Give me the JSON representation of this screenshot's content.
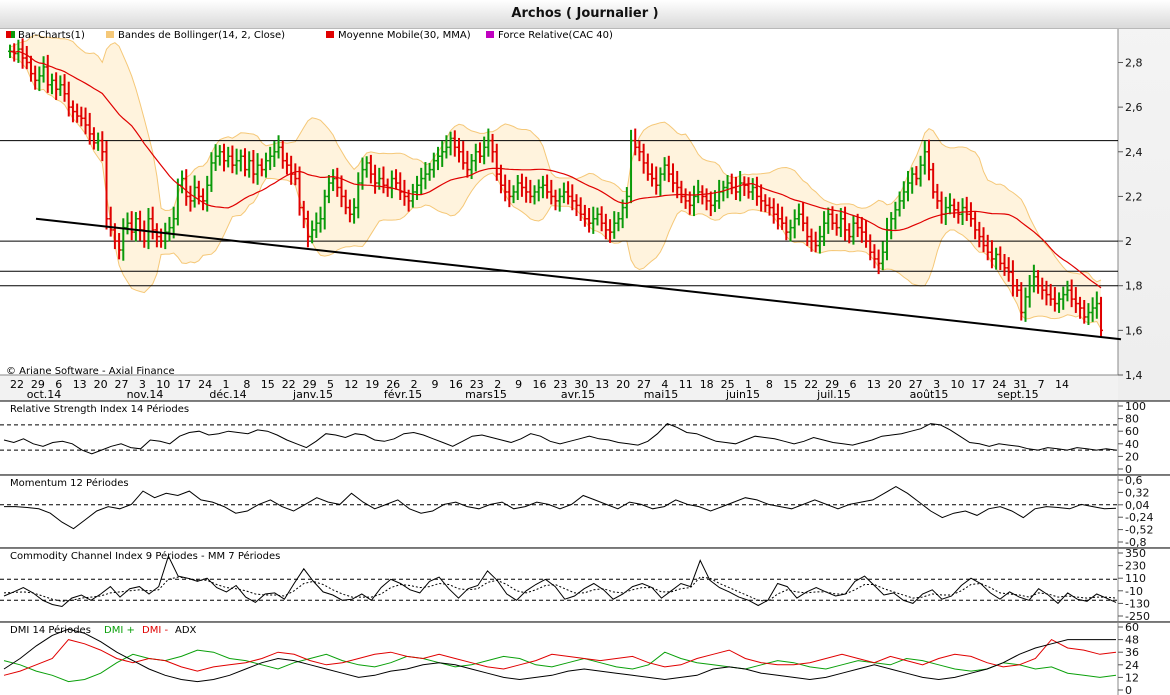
{
  "window": {
    "title": "Archos  ( Journalier )"
  },
  "colors": {
    "up": "#0a9a0a",
    "down": "#e00000",
    "ma": "#e00000",
    "bollinger": "#f5c878",
    "bollinger_fill": "#fff3dd",
    "rsi_line": "#000000",
    "dmi_plus": "#0aa00a",
    "dmi_minus": "#e00000",
    "adx": "#000000"
  },
  "copyright": "© Ariane Software - Axial Finance",
  "chart_data": [
    {
      "type": "bar",
      "panel": "price",
      "legend": [
        {
          "label": "Bar-Charts(1)",
          "color": "#e00000",
          "color2": "#0a9a0a"
        },
        {
          "label": "Bandes de Bollinger(14, 2, Close)",
          "color": "#f5c878"
        },
        {
          "label": "Moyenne Mobile(30, MMA)",
          "color": "#e00000"
        },
        {
          "label": "Force Relative(CAC 40)",
          "color": "#c000c0"
        }
      ],
      "ylim": [
        1.4,
        2.95
      ],
      "yticks": [
        "2,8",
        "2,6",
        "2,4",
        "2,2",
        "2",
        "1,8",
        "1,6",
        "1,4"
      ],
      "ytick_values": [
        2.8,
        2.6,
        2.4,
        2.2,
        2.0,
        1.8,
        1.6,
        1.4
      ],
      "day_labels": [
        "22",
        "29",
        "6",
        "13",
        "20",
        "27",
        "3",
        "10",
        "17",
        "24",
        "1",
        "8",
        "15",
        "22",
        "29",
        "5",
        "12",
        "19",
        "26",
        "2",
        "9",
        "16",
        "23",
        "2",
        "9",
        "16",
        "23",
        "30",
        "13",
        "20",
        "27",
        "4",
        "11",
        "18",
        "25",
        "1",
        "8",
        "15",
        "22",
        "29",
        "6",
        "13",
        "20",
        "27",
        "3",
        "10",
        "17",
        "24",
        "31",
        "7",
        "14"
      ],
      "month_labels": [
        "oct.14",
        "nov.14",
        "déc.14",
        "janv.15",
        "févr.15",
        "mars15",
        "avr.15",
        "mai15",
        "juin15",
        "juil.15",
        "août15",
        "sept.15"
      ],
      "horizontal_levels": [
        2.45,
        2.0,
        1.865,
        1.8
      ],
      "trendline": {
        "from": [
          0,
          2.1
        ],
        "to": [
          274,
          1.56
        ]
      },
      "closes": [
        2.85,
        2.84,
        2.86,
        2.82,
        2.8,
        2.75,
        2.72,
        2.74,
        2.78,
        2.7,
        2.72,
        2.68,
        2.7,
        2.66,
        2.6,
        2.58,
        2.56,
        2.55,
        2.52,
        2.48,
        2.44,
        2.45,
        2.4,
        2.1,
        2.05,
        2.0,
        1.96,
        2.06,
        2.08,
        2.04,
        2.1,
        2.05,
        2.0,
        2.1,
        2.05,
        2.02,
        2.0,
        2.04,
        2.06,
        2.1,
        2.25,
        2.28,
        2.2,
        2.18,
        2.24,
        2.2,
        2.18,
        2.25,
        2.35,
        2.38,
        2.4,
        2.36,
        2.38,
        2.34,
        2.36,
        2.38,
        2.32,
        2.36,
        2.3,
        2.34,
        2.32,
        2.36,
        2.38,
        2.4,
        2.42,
        2.36,
        2.34,
        2.3,
        2.28,
        2.15,
        2.1,
        2.02,
        2.05,
        2.08,
        2.1,
        2.2,
        2.26,
        2.28,
        2.24,
        2.2,
        2.15,
        2.12,
        2.15,
        2.26,
        2.32,
        2.35,
        2.3,
        2.26,
        2.28,
        2.25,
        2.24,
        2.28,
        2.26,
        2.22,
        2.2,
        2.18,
        2.22,
        2.25,
        2.28,
        2.3,
        2.32,
        2.36,
        2.38,
        2.4,
        2.42,
        2.46,
        2.42,
        2.4,
        2.35,
        2.32,
        2.36,
        2.4,
        2.38,
        2.42,
        2.45,
        2.4,
        2.3,
        2.25,
        2.22,
        2.2,
        2.22,
        2.26,
        2.24,
        2.22,
        2.2,
        2.22,
        2.24,
        2.25,
        2.22,
        2.2,
        2.18,
        2.2,
        2.22,
        2.2,
        2.18,
        2.16,
        2.12,
        2.1,
        2.08,
        2.1,
        2.12,
        2.08,
        2.05,
        2.04,
        2.08,
        2.1,
        2.15,
        2.2,
        2.45,
        2.42,
        2.4,
        2.35,
        2.3,
        2.28,
        2.25,
        2.3,
        2.34,
        2.3,
        2.26,
        2.24,
        2.2,
        2.18,
        2.16,
        2.2,
        2.22,
        2.2,
        2.18,
        2.16,
        2.18,
        2.22,
        2.24,
        2.26,
        2.24,
        2.22,
        2.26,
        2.25,
        2.22,
        2.24,
        2.2,
        2.18,
        2.16,
        2.15,
        2.12,
        2.1,
        2.08,
        2.04,
        2.06,
        2.1,
        2.12,
        2.08,
        2.02,
        2.0,
        1.98,
        2.02,
        2.08,
        2.12,
        2.08,
        2.06,
        2.1,
        2.05,
        2.02,
        2.08,
        2.06,
        2.04,
        2.0,
        1.95,
        1.92,
        1.9,
        1.95,
        2.05,
        2.1,
        2.14,
        2.18,
        2.22,
        2.26,
        2.3,
        2.28,
        2.34,
        2.4,
        2.32,
        2.22,
        2.18,
        2.12,
        2.15,
        2.16,
        2.14,
        2.12,
        2.15,
        2.12,
        2.1,
        2.05,
        2.02,
        1.98,
        1.95,
        1.92,
        1.94,
        1.9,
        1.88,
        1.86,
        1.8,
        1.78,
        1.68,
        1.75,
        1.8,
        1.84,
        1.8,
        1.78,
        1.76,
        1.74,
        1.72,
        1.74,
        1.76,
        1.78,
        1.74,
        1.72,
        1.7,
        1.66,
        1.68,
        1.7,
        1.72,
        1.6
      ]
    },
    {
      "type": "line",
      "panel": "rsi",
      "title": "Relative Strength Index 14 Périodes",
      "ylim": [
        0,
        100
      ],
      "yticks": [
        "100",
        "80",
        "60",
        "40",
        "20",
        "0"
      ],
      "ytick_values": [
        100,
        80,
        60,
        40,
        20,
        0
      ],
      "dashed_levels": [
        70,
        30
      ],
      "series": [
        {
          "values": [
            46,
            42,
            48,
            40,
            36,
            42,
            44,
            40,
            30,
            24,
            30,
            36,
            40,
            34,
            32,
            46,
            44,
            40,
            52,
            58,
            60,
            54,
            56,
            60,
            58,
            56,
            62,
            60,
            54,
            46,
            40,
            34,
            44,
            56,
            54,
            50,
            56,
            54,
            46,
            44,
            48,
            56,
            58,
            54,
            48,
            42,
            36,
            44,
            52,
            54,
            50,
            46,
            42,
            48,
            56,
            52,
            44,
            40,
            44,
            48,
            52,
            48,
            46,
            42,
            40,
            38,
            44,
            56,
            72,
            66,
            58,
            56,
            50,
            44,
            42,
            40,
            46,
            52,
            50,
            48,
            44,
            40,
            44,
            50,
            46,
            42,
            40,
            38,
            42,
            46,
            52,
            54,
            56,
            60,
            64,
            72,
            70,
            62,
            52,
            42,
            40,
            36,
            40,
            38,
            36,
            32,
            30,
            34,
            32,
            30,
            34,
            32,
            30,
            32,
            30
          ]
        }
      ]
    },
    {
      "type": "line",
      "panel": "momentum",
      "title": "Momentum 12 Périodes",
      "ylim": [
        -0.8,
        0.6
      ],
      "yticks": [
        "0,6",
        "0,32",
        "0,04",
        "-0,24",
        "-0,52",
        "-0,8"
      ],
      "ytick_values": [
        0.6,
        0.32,
        0.04,
        -0.24,
        -0.52,
        -0.8
      ],
      "dashed_levels": [
        0.04
      ],
      "series": [
        {
          "values": [
            0.0,
            0.0,
            -0.02,
            -0.05,
            -0.15,
            -0.35,
            -0.5,
            -0.3,
            -0.1,
            0.0,
            -0.05,
            0.05,
            0.35,
            0.2,
            0.3,
            0.25,
            0.35,
            0.15,
            0.1,
            0.0,
            -0.15,
            -0.1,
            0.05,
            0.15,
            0.0,
            -0.1,
            0.05,
            0.2,
            0.1,
            0.05,
            0.3,
            0.1,
            -0.05,
            0.05,
            0.15,
            -0.05,
            -0.15,
            -0.1,
            0.05,
            0.1,
            0.0,
            -0.05,
            0.05,
            0.1,
            -0.05,
            0.0,
            0.1,
            0.05,
            -0.05,
            0.05,
            0.25,
            0.15,
            0.05,
            -0.05,
            0.1,
            0.05,
            -0.05,
            0.0,
            0.15,
            0.05,
            0.0,
            -0.1,
            0.0,
            0.1,
            0.2,
            0.15,
            0.05,
            0.0,
            -0.05,
            0.05,
            0.15,
            0.05,
            -0.05,
            0.05,
            0.1,
            0.15,
            0.3,
            0.45,
            0.3,
            0.1,
            -0.1,
            -0.25,
            -0.15,
            -0.1,
            -0.2,
            -0.05,
            0.0,
            -0.1,
            -0.25,
            -0.05,
            0.0,
            -0.02,
            -0.05,
            0.05,
            0.0,
            -0.05,
            -0.04
          ]
        }
      ]
    },
    {
      "type": "line",
      "panel": "cci",
      "title": "Commodity Channel Index 9 Périodes - MM  7 Périodes",
      "ylim": [
        -250,
        350
      ],
      "yticks": [
        "350",
        "230",
        "110",
        "-10",
        "-130",
        "-250"
      ],
      "ytick_values": [
        350,
        230,
        110,
        -10,
        -130,
        -250
      ],
      "dashed_levels": [
        100,
        -100
      ],
      "series": [
        {
          "name": "CCI",
          "values": [
            -60,
            -20,
            20,
            -30,
            -100,
            -140,
            -160,
            -80,
            -50,
            -100,
            -40,
            30,
            -70,
            10,
            30,
            -40,
            30,
            320,
            130,
            110,
            80,
            110,
            20,
            -20,
            40,
            -70,
            -120,
            -40,
            -30,
            -90,
            60,
            200,
            80,
            -20,
            -50,
            -100,
            -90,
            -40,
            -100,
            20,
            100,
            60,
            0,
            -30,
            80,
            120,
            10,
            -80,
            10,
            40,
            180,
            90,
            -40,
            -100,
            -10,
            50,
            100,
            30,
            -90,
            -60,
            10,
            60,
            0,
            -90,
            -40,
            30,
            60,
            20,
            -80,
            -10,
            60,
            30,
            280,
            90,
            20,
            -20,
            -70,
            -100,
            -150,
            -100,
            60,
            30,
            -80,
            -20,
            20,
            -20,
            -60,
            -40,
            80,
            130,
            40,
            -50,
            -30,
            -100,
            -130,
            -40,
            0,
            -90,
            -60,
            40,
            110,
            60,
            -30,
            -90,
            -20,
            -70,
            -100,
            10,
            -50,
            -130,
            -30,
            -90,
            -110,
            -40,
            -80,
            -120
          ]
        },
        {
          "name": "MM",
          "values": [
            -30,
            -25,
            -20,
            -30,
            -60,
            -90,
            -110,
            -100,
            -80,
            -70,
            -60,
            -30,
            -20,
            -10,
            0,
            -10,
            0,
            100,
            120,
            110,
            90,
            90,
            50,
            20,
            10,
            -10,
            -40,
            -50,
            -50,
            -60,
            -10,
            60,
            80,
            50,
            0,
            -40,
            -70,
            -70,
            -70,
            -40,
            20,
            50,
            40,
            20,
            30,
            60,
            50,
            10,
            0,
            10,
            70,
            90,
            50,
            -10,
            -30,
            0,
            40,
            50,
            10,
            -30,
            -30,
            0,
            10,
            -20,
            -30,
            0,
            20,
            20,
            -20,
            -20,
            10,
            20,
            120,
            110,
            60,
            20,
            -20,
            -60,
            -100,
            -110,
            -40,
            0,
            -20,
            -30,
            -20,
            -20,
            -40,
            -40,
            0,
            50,
            50,
            10,
            -20,
            -50,
            -80,
            -70,
            -40,
            -50,
            -50,
            -10,
            50,
            60,
            20,
            -30,
            -40,
            -50,
            -70,
            -30,
            -40,
            -70,
            -60,
            -70,
            -80,
            -70,
            -70,
            -80
          ]
        }
      ]
    },
    {
      "type": "line",
      "panel": "dmi",
      "title": "DMI 14 Périodes",
      "legend": [
        {
          "label": "DMI +",
          "color": "#0aa00a"
        },
        {
          "label": "DMI -",
          "color": "#e00000"
        },
        {
          "label": "ADX",
          "color": "#000000"
        }
      ],
      "ylim": [
        0,
        60
      ],
      "yticks": [
        "60",
        "48",
        "36",
        "24",
        "12",
        "0"
      ],
      "ytick_values": [
        60,
        48,
        36,
        24,
        12,
        0
      ],
      "series": [
        {
          "name": "DMI +",
          "values": [
            28,
            24,
            18,
            14,
            8,
            10,
            16,
            26,
            34,
            30,
            28,
            32,
            38,
            36,
            30,
            28,
            24,
            20,
            26,
            30,
            34,
            28,
            24,
            22,
            26,
            32,
            30,
            26,
            22,
            24,
            28,
            32,
            30,
            24,
            22,
            26,
            30,
            26,
            22,
            20,
            24,
            36,
            30,
            26,
            24,
            22,
            20,
            24,
            28,
            26,
            22,
            20,
            24,
            28,
            26,
            24,
            30,
            28,
            24,
            20,
            18,
            20,
            26,
            24,
            20,
            22,
            16,
            14,
            12,
            14
          ]
        },
        {
          "name": "DMI -",
          "values": [
            14,
            18,
            24,
            30,
            48,
            44,
            38,
            30,
            26,
            30,
            28,
            22,
            18,
            22,
            24,
            26,
            30,
            36,
            34,
            28,
            24,
            26,
            30,
            34,
            36,
            32,
            30,
            34,
            30,
            26,
            22,
            20,
            24,
            28,
            34,
            32,
            30,
            28,
            30,
            32,
            26,
            22,
            24,
            30,
            34,
            38,
            30,
            26,
            24,
            24,
            26,
            30,
            34,
            30,
            26,
            32,
            28,
            24,
            30,
            34,
            32,
            26,
            22,
            24,
            30,
            48,
            40,
            38,
            34,
            36
          ]
        },
        {
          "name": "ADX",
          "values": [
            20,
            30,
            42,
            52,
            58,
            54,
            46,
            36,
            28,
            20,
            14,
            10,
            8,
            10,
            14,
            20,
            26,
            30,
            28,
            24,
            20,
            16,
            12,
            14,
            18,
            20,
            24,
            26,
            24,
            20,
            16,
            12,
            10,
            12,
            14,
            18,
            20,
            18,
            16,
            14,
            12,
            10,
            12,
            14,
            20,
            22,
            20,
            16,
            14,
            12,
            10,
            12,
            16,
            20,
            24,
            20,
            16,
            12,
            10,
            12,
            16,
            20,
            26,
            34,
            40,
            44,
            48,
            48,
            48,
            48
          ]
        }
      ]
    }
  ]
}
